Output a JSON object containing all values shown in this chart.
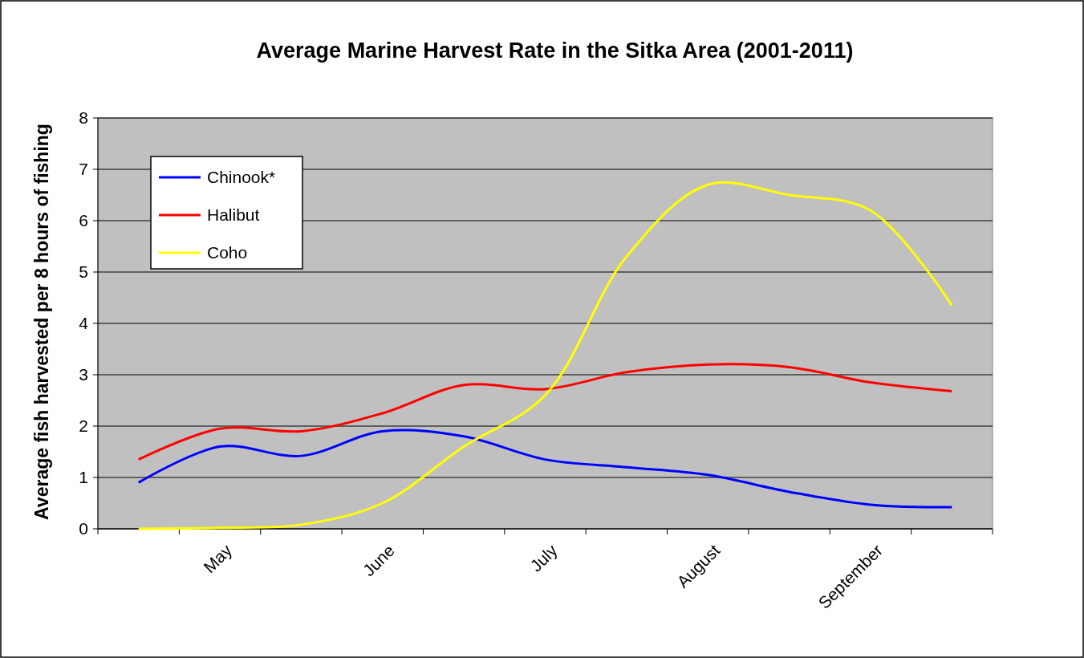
{
  "chart_data": {
    "type": "line",
    "title": "Average Marine Harvest Rate in the Sitka Area (2001-2011)",
    "ylabel": "Average fish harvested  per 8 hours of fishing",
    "categories": [
      null,
      "May",
      null,
      "June",
      null,
      "July",
      null,
      "August",
      null,
      "September",
      null
    ],
    "series": [
      {
        "name": "Chinook*",
        "color": "#0000ff",
        "values": [
          0.9,
          1.6,
          1.42,
          1.9,
          1.8,
          1.35,
          1.2,
          1.05,
          0.72,
          0.47,
          0.42
        ]
      },
      {
        "name": "Halibut",
        "color": "#ff0000",
        "values": [
          1.35,
          1.95,
          1.9,
          2.25,
          2.8,
          2.72,
          3.05,
          3.2,
          3.15,
          2.85,
          2.68
        ]
      },
      {
        "name": "Coho",
        "color": "#ffff00",
        "values": [
          0,
          0.02,
          0.08,
          0.5,
          1.6,
          2.6,
          5.3,
          6.7,
          6.5,
          6.2,
          4.35
        ]
      }
    ],
    "ylim": [
      0,
      8
    ],
    "yticks": [
      0,
      1,
      2,
      3,
      4,
      5,
      6,
      7,
      8
    ],
    "grid": "y",
    "legend": "top left",
    "marker": "none",
    "line_style": "solid"
  }
}
